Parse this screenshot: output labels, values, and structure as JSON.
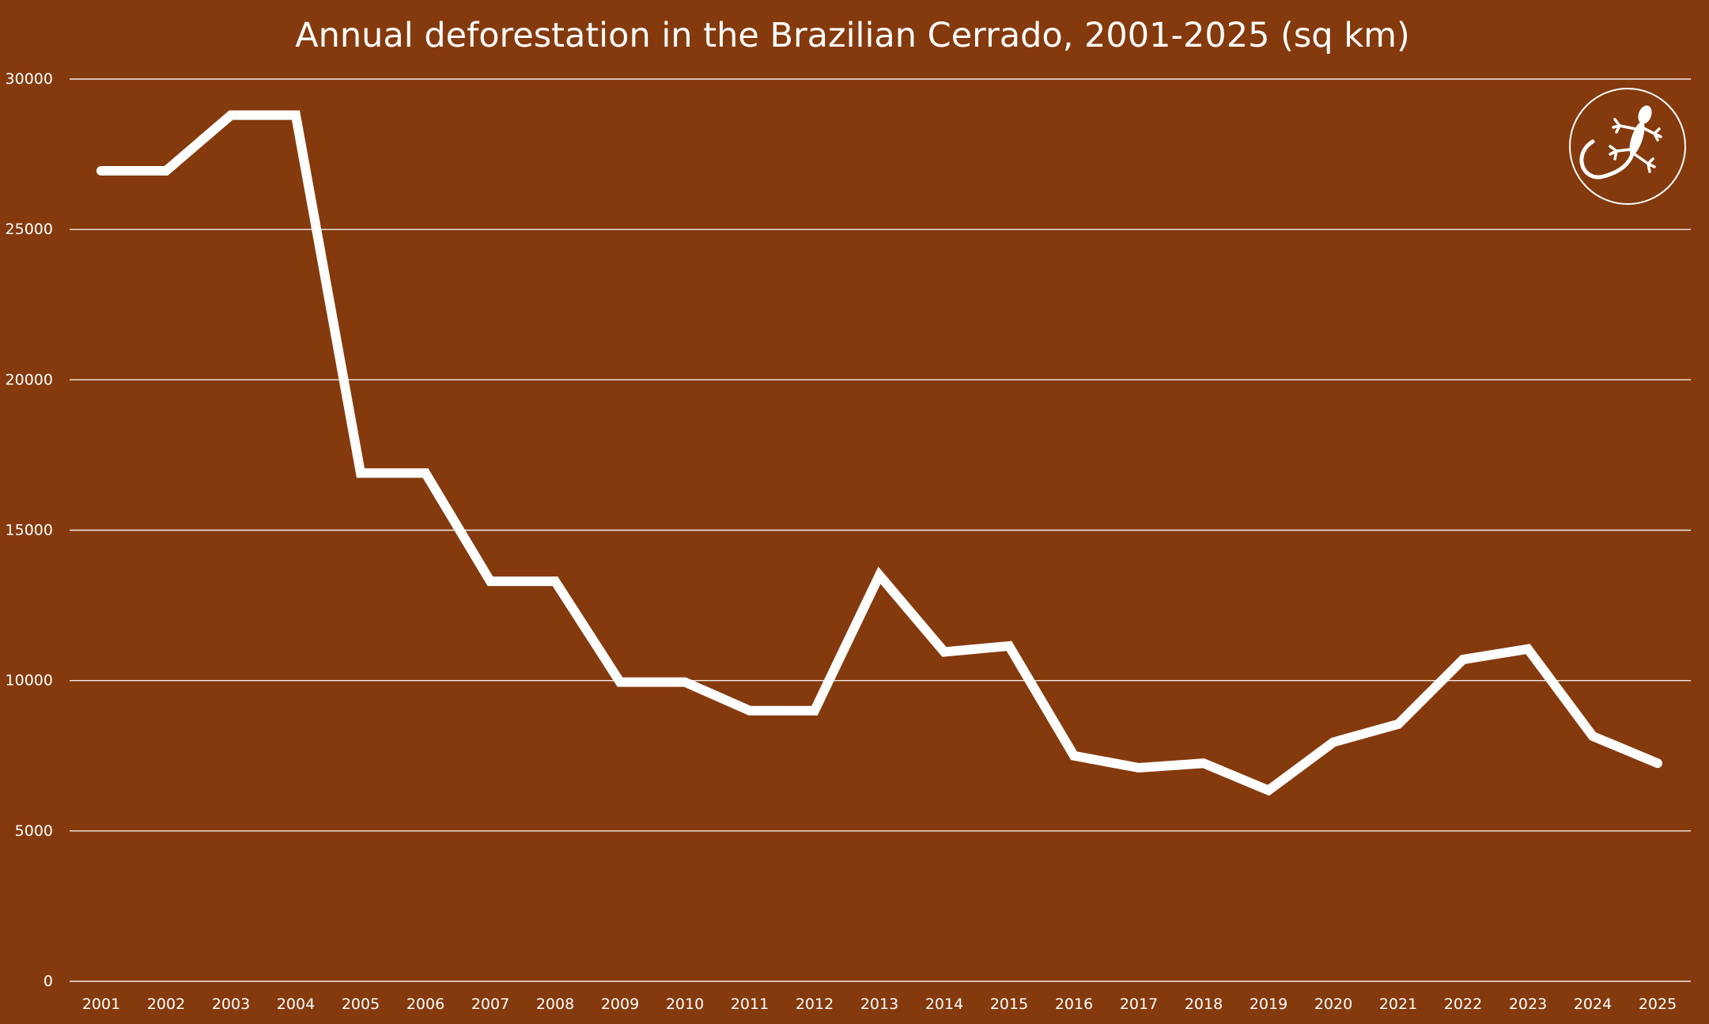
{
  "colors": {
    "background": "#853a0d",
    "line": "#ffffff",
    "text": "#ffffff",
    "grid": "#ffffff"
  },
  "logo": {
    "icon": "gecko-logo-icon"
  },
  "chart_data": {
    "type": "line",
    "title": "Annual deforestation in the Brazilian Cerrado, 2001-2025 (sq km)",
    "xlabel": "",
    "ylabel": "",
    "ylim": [
      0,
      30000
    ],
    "yticks": [
      0,
      5000,
      10000,
      15000,
      20000,
      25000,
      30000
    ],
    "ytick_labels": [
      "0",
      "5000",
      "10000",
      "15000",
      "20000",
      "25000",
      "30000"
    ],
    "grid": true,
    "legend": "none",
    "categories": [
      "2001",
      "2002",
      "2003",
      "2004",
      "2005",
      "2006",
      "2007",
      "2008",
      "2009",
      "2010",
      "2011",
      "2012",
      "2013",
      "2014",
      "2015",
      "2016",
      "2017",
      "2018",
      "2019",
      "2020",
      "2021",
      "2022",
      "2023",
      "2024",
      "2025"
    ],
    "series": [
      {
        "name": "Deforestation (sq km)",
        "values": [
          26950,
          26950,
          28800,
          28800,
          16900,
          16900,
          13300,
          13300,
          9950,
          9950,
          9000,
          9000,
          13500,
          10950,
          11150,
          7500,
          7100,
          7250,
          6350,
          7950,
          8550,
          10700,
          11050,
          8150,
          7250
        ]
      }
    ]
  }
}
